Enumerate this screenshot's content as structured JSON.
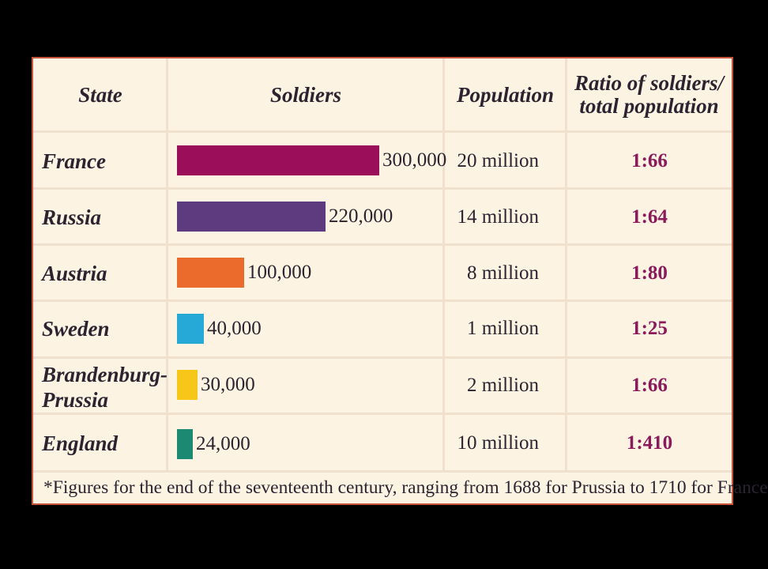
{
  "headers": {
    "state": "State",
    "soldiers": "Soldiers",
    "population": "Population",
    "ratio_line1": "Ratio of soldiers/",
    "ratio_line2": "total population"
  },
  "chart_data": {
    "type": "bar",
    "orientation": "horizontal",
    "categories": [
      "France",
      "Russia",
      "Austria",
      "Sweden",
      "Brandenburg-Prussia",
      "England"
    ],
    "values": [
      300000,
      220000,
      100000,
      40000,
      30000,
      24000
    ],
    "bar_colors": [
      "#9b0f5a",
      "#5e3a7e",
      "#ea6b2c",
      "#27a9d8",
      "#f6c619",
      "#1c8a72"
    ]
  },
  "rows": [
    {
      "state_line1": "France",
      "state_line2": "",
      "soldiers_label": "300,000",
      "population": "20 million",
      "ratio": "1:66"
    },
    {
      "state_line1": "Russia",
      "state_line2": "",
      "soldiers_label": "220,000",
      "population": "14 million",
      "ratio": "1:64"
    },
    {
      "state_line1": "Austria",
      "state_line2": "",
      "soldiers_label": "100,000",
      "population": "8 million",
      "ratio": "1:80"
    },
    {
      "state_line1": "Sweden",
      "state_line2": "",
      "soldiers_label": "40,000",
      "population": "1 million",
      "ratio": "1:25"
    },
    {
      "state_line1": "Brandenburg-",
      "state_line2": "Prussia",
      "soldiers_label": "30,000",
      "population": "2 million",
      "ratio": "1:66"
    },
    {
      "state_line1": "England",
      "state_line2": "",
      "soldiers_label": "24,000",
      "population": "10 million",
      "ratio": "1:410"
    }
  ],
  "footnote": "*Figures for the end of the seventeenth century, ranging from 1688 for Prussia to 1710 for France",
  "colors": {
    "background": "#000000",
    "table_bg": "#fdf3e3",
    "border": "#c8553a",
    "ratio_text": "#8b1a5a"
  }
}
